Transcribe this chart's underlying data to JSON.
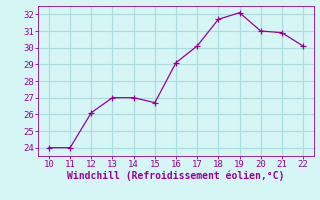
{
  "x": [
    10,
    11,
    12,
    13,
    14,
    15,
    16,
    17,
    18,
    19,
    20,
    21,
    22
  ],
  "y": [
    24.0,
    24.0,
    26.1,
    27.0,
    27.0,
    26.7,
    29.1,
    30.1,
    31.7,
    32.1,
    31.0,
    30.9,
    30.1
  ],
  "line_color": "#990099",
  "marker": "+",
  "marker_size": 4,
  "bg_color": "#D6F5F5",
  "grid_color": "#AADDDD",
  "xlabel": "Windchill (Refroidissement éolien,°C)",
  "xlabel_color": "#990099",
  "tick_color": "#990099",
  "spine_color": "#990099",
  "xlim": [
    9.5,
    22.5
  ],
  "ylim": [
    23.5,
    32.5
  ],
  "xticks": [
    10,
    11,
    12,
    13,
    14,
    15,
    16,
    17,
    18,
    19,
    20,
    21,
    22
  ],
  "yticks": [
    24,
    25,
    26,
    27,
    28,
    29,
    30,
    31,
    32
  ],
  "font_size": 6.5,
  "xlabel_fontsize": 7.0
}
